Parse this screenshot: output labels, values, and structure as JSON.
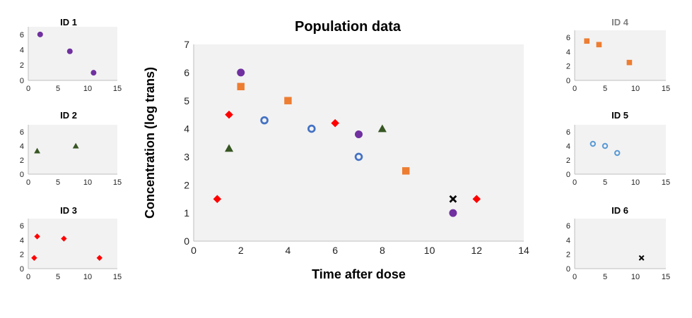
{
  "chart_data": [
    {
      "type": "scatter",
      "title": "Population data",
      "xlabel": "Time after dose",
      "ylabel": "Concentration (log trans)",
      "xlim": [
        0,
        14
      ],
      "ylim": [
        0,
        7
      ],
      "xticks": [
        0,
        2,
        4,
        6,
        8,
        10,
        12,
        14
      ],
      "yticks": [
        0,
        1,
        2,
        3,
        4,
        5,
        6,
        7
      ],
      "grid": false,
      "series": [
        {
          "id": "id1",
          "marker": "circle",
          "color": "#7030a0",
          "points": [
            [
              2,
              6
            ],
            [
              7,
              3.8
            ],
            [
              11,
              1
            ]
          ]
        },
        {
          "id": "id2",
          "marker": "triangle",
          "color": "#375623",
          "points": [
            [
              1.5,
              3.3
            ],
            [
              8,
              4
            ]
          ]
        },
        {
          "id": "id3",
          "marker": "diamond",
          "color": "#ff0000",
          "points": [
            [
              1,
              1.5
            ],
            [
              1.5,
              4.5
            ],
            [
              6,
              4.2
            ],
            [
              12,
              1.5
            ]
          ]
        },
        {
          "id": "id4",
          "marker": "square",
          "color": "#ed7d31",
          "points": [
            [
              2,
              5.5
            ],
            [
              4,
              5
            ],
            [
              9,
              2.5
            ]
          ]
        },
        {
          "id": "id5",
          "marker": "open-circle",
          "color": "#4472c4",
          "points": [
            [
              3,
              4.3
            ],
            [
              5,
              4
            ],
            [
              7,
              3
            ]
          ]
        },
        {
          "id": "id6",
          "marker": "x",
          "color": "#000000",
          "points": [
            [
              11,
              1.5
            ]
          ]
        }
      ]
    },
    {
      "type": "scatter",
      "title": "ID 1",
      "title_color": "#000000",
      "xlim": [
        0,
        15
      ],
      "ylim": [
        0,
        7
      ],
      "xticks": [
        0,
        5,
        10,
        15
      ],
      "yticks": [
        0,
        2,
        4,
        6
      ],
      "series": [
        {
          "marker": "circle",
          "color": "#7030a0",
          "points": [
            [
              2,
              6
            ],
            [
              7,
              3.8
            ],
            [
              11,
              1
            ]
          ]
        }
      ]
    },
    {
      "type": "scatter",
      "title": "ID 2",
      "title_color": "#000000",
      "xlim": [
        0,
        15
      ],
      "ylim": [
        0,
        7
      ],
      "xticks": [
        0,
        5,
        10,
        15
      ],
      "yticks": [
        0,
        2,
        4,
        6
      ],
      "series": [
        {
          "marker": "triangle",
          "color": "#375623",
          "points": [
            [
              1.5,
              3.3
            ],
            [
              8,
              4
            ]
          ]
        }
      ]
    },
    {
      "type": "scatter",
      "title": "ID 3",
      "title_color": "#000000",
      "xlim": [
        0,
        15
      ],
      "ylim": [
        0,
        7
      ],
      "xticks": [
        0,
        5,
        10,
        15
      ],
      "yticks": [
        0,
        2,
        4,
        6
      ],
      "series": [
        {
          "marker": "diamond",
          "color": "#ff0000",
          "points": [
            [
              1,
              1.5
            ],
            [
              1.5,
              4.5
            ],
            [
              6,
              4.2
            ],
            [
              12,
              1.5
            ]
          ]
        }
      ]
    },
    {
      "type": "scatter",
      "title": "ID 4",
      "title_color": "#7f7f7f",
      "xlim": [
        0,
        15
      ],
      "ylim": [
        0,
        7
      ],
      "xticks": [
        0,
        5,
        10,
        15
      ],
      "yticks": [
        0,
        2,
        4,
        6
      ],
      "series": [
        {
          "marker": "square",
          "color": "#ed7d31",
          "points": [
            [
              2,
              5.5
            ],
            [
              4,
              5
            ],
            [
              9,
              2.5
            ]
          ]
        }
      ]
    },
    {
      "type": "scatter",
      "title": "ID 5",
      "title_color": "#000000",
      "xlim": [
        0,
        15
      ],
      "ylim": [
        0,
        7
      ],
      "xticks": [
        0,
        5,
        10,
        15
      ],
      "yticks": [
        0,
        2,
        4,
        6
      ],
      "series": [
        {
          "marker": "open-circle",
          "color": "#5b9bd5",
          "points": [
            [
              3,
              4.3
            ],
            [
              5,
              4
            ],
            [
              7,
              3
            ]
          ]
        }
      ]
    },
    {
      "type": "scatter",
      "title": "ID 6",
      "title_color": "#000000",
      "xlim": [
        0,
        15
      ],
      "ylim": [
        0,
        7
      ],
      "xticks": [
        0,
        5,
        10,
        15
      ],
      "yticks": [
        0,
        2,
        4,
        6
      ],
      "series": [
        {
          "marker": "x",
          "color": "#000000",
          "points": [
            [
              11,
              1.5
            ]
          ]
        }
      ]
    }
  ]
}
